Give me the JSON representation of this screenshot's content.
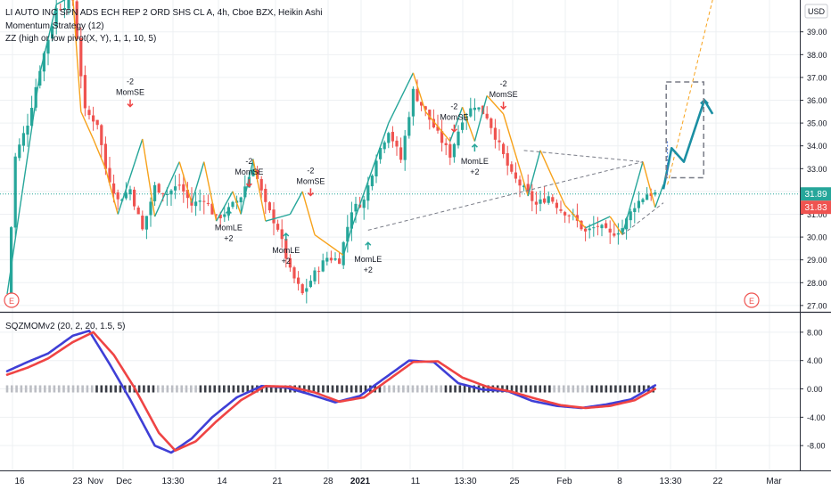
{
  "header": {
    "title": "LI AUTO INC SPN ADS ECH REP 2 ORD SHS CL A, 4h, Cboe BZX, Heikin Ashi",
    "indicator1": "Momentum Strategy (12)",
    "indicator2": "ZZ (high or low pivot(X, Y), 1, 1, 10, 5)"
  },
  "currency": "USD",
  "price_axis": {
    "ticks": [
      "39.00",
      "38.00",
      "37.00",
      "36.00",
      "35.00",
      "34.00",
      "33.00",
      "32.00",
      "31.00",
      "30.00",
      "29.00",
      "28.00",
      "27.00"
    ],
    "last_price": "31.89",
    "last_price_color": "#26a69a",
    "alt_price": "31.83",
    "alt_price_color": "#ef5350"
  },
  "osc_panel": {
    "title": "SQZMOMv2 (20, 2, 20, 1.5, 5)",
    "ticks": [
      "8.00",
      "4.00",
      "0.00",
      "-4.00",
      "-8.00"
    ]
  },
  "time_axis": [
    "16",
    "23",
    "Nov",
    "Dec",
    "13:30",
    "14",
    "21",
    "28",
    "2021",
    "11",
    "13:30",
    "25",
    "Feb",
    "8",
    "13:30",
    "22",
    "Mar"
  ],
  "signals": [
    {
      "text": "-2",
      "sub": "MomSE",
      "dir": "down"
    },
    {
      "text": "-2",
      "sub": "MomSE",
      "dir": "down"
    },
    {
      "text": "-2",
      "sub": "MomSE",
      "dir": "down"
    },
    {
      "text": "-2",
      "sub": "MomSE",
      "dir": "down"
    },
    {
      "text": "-2",
      "sub": "MomSE",
      "dir": "down"
    },
    {
      "text": "MomLE",
      "sub": "+2",
      "dir": "up"
    },
    {
      "text": "MomLE",
      "sub": "+2",
      "dir": "up"
    },
    {
      "text": "MomLE",
      "sub": "+2",
      "dir": "up"
    },
    {
      "text": "MomLE",
      "sub": "+2",
      "dir": "up"
    }
  ],
  "earnings_marker": "E",
  "colors": {
    "up": "#26a69a",
    "down": "#ef5350",
    "zigzag": "#f7a21b",
    "momentum_blue": "#3f3fd6",
    "signal_red": "#ef4444",
    "forecast": "#1b8fa3",
    "grid": "#eef0f3"
  },
  "chart_data": [
    {
      "type": "candlestick",
      "title": "LI AUTO INC SPN ADS ECH REP 2 ORD SHS CL A, 4h, Cboe BZX, Heikin Ashi",
      "ylabel": "USD",
      "ylim": [
        26.8,
        40.2
      ],
      "x": [
        "Oct 16",
        "Oct 23",
        "Nov",
        "Dec",
        "13:30",
        "Dec 14",
        "Dec 21",
        "Dec 28",
        "2021",
        "Jan 11",
        "13:30",
        "Jan 25",
        "Feb",
        "Feb 8",
        "13:30",
        "Feb 22",
        "Mar"
      ],
      "close_anchors": [
        {
          "t": 0,
          "v": 27.4
        },
        {
          "t": 2,
          "v": 33.5
        },
        {
          "t": 5,
          "v": 35.0
        },
        {
          "t": 8,
          "v": 37.4
        },
        {
          "t": 12,
          "v": 40.0
        },
        {
          "t": 16,
          "v": 40.4
        },
        {
          "t": 19,
          "v": 35.5
        },
        {
          "t": 22,
          "v": 35.0
        },
        {
          "t": 24,
          "v": 33.0
        },
        {
          "t": 27,
          "v": 31.6
        },
        {
          "t": 30,
          "v": 32.1
        },
        {
          "t": 33,
          "v": 30.3
        },
        {
          "t": 36,
          "v": 32.2
        },
        {
          "t": 39,
          "v": 31.9
        },
        {
          "t": 42,
          "v": 32.3
        },
        {
          "t": 45,
          "v": 31.4
        },
        {
          "t": 48,
          "v": 31.7
        },
        {
          "t": 51,
          "v": 30.8
        },
        {
          "t": 54,
          "v": 31.2
        },
        {
          "t": 57,
          "v": 31.8
        },
        {
          "t": 60,
          "v": 33.1
        },
        {
          "t": 63,
          "v": 31.4
        },
        {
          "t": 66,
          "v": 30.4
        },
        {
          "t": 69,
          "v": 28.5
        },
        {
          "t": 72,
          "v": 27.5
        },
        {
          "t": 75,
          "v": 28.4
        },
        {
          "t": 78,
          "v": 29.1
        },
        {
          "t": 81,
          "v": 29.0
        },
        {
          "t": 84,
          "v": 31.2
        },
        {
          "t": 87,
          "v": 31.6
        },
        {
          "t": 90,
          "v": 33.5
        },
        {
          "t": 93,
          "v": 34.7
        },
        {
          "t": 96,
          "v": 33.4
        },
        {
          "t": 99,
          "v": 36.4
        },
        {
          "t": 102,
          "v": 35.5
        },
        {
          "t": 105,
          "v": 34.5
        },
        {
          "t": 108,
          "v": 33.6
        },
        {
          "t": 111,
          "v": 35.2
        },
        {
          "t": 114,
          "v": 35.8
        },
        {
          "t": 117,
          "v": 35.3
        },
        {
          "t": 120,
          "v": 34.0
        },
        {
          "t": 123,
          "v": 32.7
        },
        {
          "t": 126,
          "v": 32.1
        },
        {
          "t": 129,
          "v": 31.4
        },
        {
          "t": 132,
          "v": 31.8
        },
        {
          "t": 135,
          "v": 31.2
        },
        {
          "t": 138,
          "v": 30.9
        },
        {
          "t": 141,
          "v": 30.2
        },
        {
          "t": 144,
          "v": 30.5
        },
        {
          "t": 147,
          "v": 30.1
        },
        {
          "t": 150,
          "v": 30.4
        },
        {
          "t": 153,
          "v": 31.4
        },
        {
          "t": 156,
          "v": 31.9
        },
        {
          "t": 158,
          "v": 31.9
        }
      ],
      "zigzag": [
        {
          "t": 0,
          "v": 27.5
        },
        {
          "t": 8,
          "v": 37.2
        },
        {
          "t": 12,
          "v": 40.2
        },
        {
          "t": 16,
          "v": 40.6
        },
        {
          "t": 18,
          "v": 35.5
        },
        {
          "t": 21,
          "v": 34.3
        },
        {
          "t": 24,
          "v": 33.0
        },
        {
          "t": 27,
          "v": 31.0
        },
        {
          "t": 33,
          "v": 34.3
        },
        {
          "t": 36,
          "v": 30.9
        },
        {
          "t": 42,
          "v": 33.3
        },
        {
          "t": 45,
          "v": 31.5
        },
        {
          "t": 48,
          "v": 33.3
        },
        {
          "t": 51,
          "v": 30.7
        },
        {
          "t": 55,
          "v": 32.0
        },
        {
          "t": 57,
          "v": 31.0
        },
        {
          "t": 60,
          "v": 33.4
        },
        {
          "t": 63,
          "v": 30.7
        },
        {
          "t": 69,
          "v": 31.0
        },
        {
          "t": 72,
          "v": 32.0
        },
        {
          "t": 75,
          "v": 30.1
        },
        {
          "t": 82,
          "v": 29.2
        },
        {
          "t": 84,
          "v": 30.4
        },
        {
          "t": 93,
          "v": 35.0
        },
        {
          "t": 99,
          "v": 37.2
        },
        {
          "t": 102,
          "v": 35.5
        },
        {
          "t": 108,
          "v": 34.2
        },
        {
          "t": 111,
          "v": 35.7
        },
        {
          "t": 114,
          "v": 34.2
        },
        {
          "t": 117,
          "v": 36.2
        },
        {
          "t": 121,
          "v": 35.4
        },
        {
          "t": 127,
          "v": 31.8
        },
        {
          "t": 130,
          "v": 33.8
        },
        {
          "t": 136,
          "v": 31.4
        },
        {
          "t": 141,
          "v": 30.4
        },
        {
          "t": 147,
          "v": 30.9
        },
        {
          "t": 150,
          "v": 30.1
        },
        {
          "t": 155,
          "v": 33.3
        },
        {
          "t": 158,
          "v": 31.3
        },
        {
          "t": 160,
          "v": 32.3
        }
      ],
      "forecast": [
        {
          "t": 160,
          "v": 32.1
        },
        {
          "t": 162,
          "v": 33.9
        },
        {
          "t": 165,
          "v": 33.3
        },
        {
          "t": 170,
          "v": 36.0
        },
        {
          "t": 172,
          "v": 35.4
        }
      ]
    },
    {
      "type": "line",
      "title": "SQZMOMv2 (20, 2, 20, 1.5, 5)",
      "ylim": [
        -11,
        10.5
      ],
      "series": [
        {
          "values": [
            {
              "t": 0,
              "v": 2.5
            },
            {
              "t": 5,
              "v": 3.8
            },
            {
              "t": 10,
              "v": 5.0
            },
            {
              "t": 16,
              "v": 7.5
            },
            {
              "t": 20,
              "v": 8.2
            },
            {
              "t": 25,
              "v": 3.5
            },
            {
              "t": 30,
              "v": -1.5
            },
            {
              "t": 36,
              "v": -8.0
            },
            {
              "t": 40,
              "v": -9.0
            },
            {
              "t": 45,
              "v": -7.0
            },
            {
              "t": 50,
              "v": -4.0
            },
            {
              "t": 56,
              "v": -1.2
            },
            {
              "t": 62,
              "v": 0.4
            },
            {
              "t": 68,
              "v": 0.2
            },
            {
              "t": 74,
              "v": -0.8
            },
            {
              "t": 80,
              "v": -1.9
            },
            {
              "t": 86,
              "v": -1.0
            },
            {
              "t": 92,
              "v": 1.5
            },
            {
              "t": 98,
              "v": 4.0
            },
            {
              "t": 104,
              "v": 3.8
            },
            {
              "t": 110,
              "v": 0.8
            },
            {
              "t": 116,
              "v": -0.1
            },
            {
              "t": 122,
              "v": -0.3
            },
            {
              "t": 128,
              "v": -1.7
            },
            {
              "t": 134,
              "v": -2.4
            },
            {
              "t": 140,
              "v": -2.7
            },
            {
              "t": 146,
              "v": -2.2
            },
            {
              "t": 152,
              "v": -1.5
            },
            {
              "t": 158,
              "v": 0.5
            }
          ]
        },
        {
          "values": [
            {
              "t": 0,
              "v": 2.0
            },
            {
              "t": 5,
              "v": 3.0
            },
            {
              "t": 10,
              "v": 4.3
            },
            {
              "t": 16,
              "v": 6.6
            },
            {
              "t": 21,
              "v": 8.0
            },
            {
              "t": 26,
              "v": 4.8
            },
            {
              "t": 31,
              "v": 0.2
            },
            {
              "t": 37,
              "v": -6.2
            },
            {
              "t": 41,
              "v": -8.7
            },
            {
              "t": 46,
              "v": -7.4
            },
            {
              "t": 51,
              "v": -4.6
            },
            {
              "t": 57,
              "v": -1.6
            },
            {
              "t": 63,
              "v": 0.4
            },
            {
              "t": 69,
              "v": 0.3
            },
            {
              "t": 75,
              "v": -0.5
            },
            {
              "t": 81,
              "v": -1.8
            },
            {
              "t": 87,
              "v": -1.2
            },
            {
              "t": 93,
              "v": 1.3
            },
            {
              "t": 99,
              "v": 3.8
            },
            {
              "t": 105,
              "v": 3.9
            },
            {
              "t": 111,
              "v": 1.6
            },
            {
              "t": 117,
              "v": 0.3
            },
            {
              "t": 123,
              "v": -0.4
            },
            {
              "t": 129,
              "v": -1.4
            },
            {
              "t": 135,
              "v": -2.3
            },
            {
              "t": 141,
              "v": -2.7
            },
            {
              "t": 147,
              "v": -2.4
            },
            {
              "t": 153,
              "v": -1.6
            },
            {
              "t": 158,
              "v": 0.0
            }
          ]
        }
      ]
    }
  ]
}
